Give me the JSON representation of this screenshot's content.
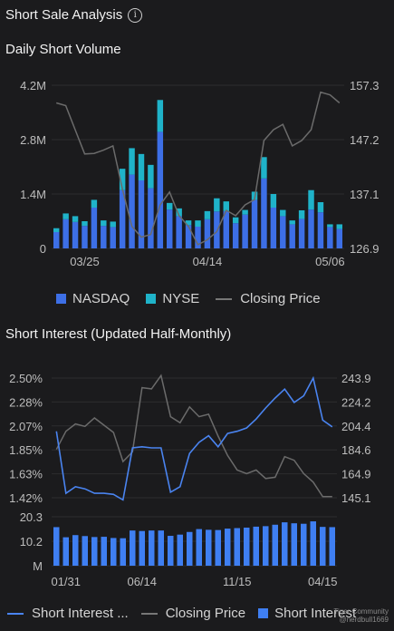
{
  "header": {
    "title": "Short Sale Analysis",
    "info_icon": "info-icon"
  },
  "daily": {
    "section_title": "Daily Short Volume",
    "legend": {
      "nasdaq": "NASDAQ",
      "nyse": "NYSE",
      "price": "Closing Price"
    },
    "colors": {
      "nasdaq": "#3d6fe6",
      "nyse": "#1fb3c9",
      "price": "#6b6b6b"
    }
  },
  "interest": {
    "section_title": "Short Interest (Updated Half-Monthly)",
    "legend": {
      "line": "Short Interest ...",
      "price": "Closing Price",
      "bars": "Short Interest"
    },
    "colors": {
      "line": "#4a84f0",
      "price": "#6b6b6b",
      "bars": "#3f7ff2"
    }
  },
  "watermark": {
    "line1": "Tiger Community",
    "line2": "@nerdbull1669"
  },
  "chart_data": [
    {
      "type": "bar",
      "stacked": true,
      "x_ticks": [
        "03/25",
        "04/14",
        "05/06"
      ],
      "x_tick_index": [
        3,
        16,
        29
      ],
      "y_ticks": [
        "0",
        "1.4M",
        "2.8M",
        "4.2M"
      ],
      "ylim": [
        0,
        4200000
      ],
      "y2_ticks": [
        "126.9",
        "137.1",
        "147.2",
        "157.3"
      ],
      "y2lim": [
        126.9,
        157.3
      ],
      "series": [
        {
          "name": "NASDAQ",
          "values": [
            0.42,
            0.75,
            0.68,
            0.58,
            1.05,
            0.58,
            0.55,
            1.5,
            1.9,
            1.75,
            1.55,
            3.0,
            1.0,
            0.83,
            0.6,
            0.56,
            0.75,
            0.95,
            0.96,
            0.65,
            0.87,
            1.25,
            1.8,
            1.05,
            0.83,
            0.62,
            0.76,
            1.0,
            0.93,
            0.55,
            0.5
          ]
        },
        {
          "name": "NYSE",
          "values": [
            0.1,
            0.15,
            0.15,
            0.12,
            0.2,
            0.14,
            0.14,
            0.55,
            0.68,
            0.68,
            0.6,
            0.82,
            0.17,
            0.2,
            0.12,
            0.16,
            0.21,
            0.34,
            0.25,
            0.15,
            0.12,
            0.21,
            0.55,
            0.35,
            0.16,
            0.1,
            0.22,
            0.5,
            0.26,
            0.07,
            0.12
          ]
        },
        {
          "name": "Closing Price",
          "values": [
            154.0,
            153.5,
            149.0,
            144.5,
            144.6,
            145.2,
            146.0,
            138.0,
            131.0,
            129.0,
            129.5,
            135.0,
            137.4,
            133.0,
            131.0,
            127.6,
            128.5,
            130.0,
            134.0,
            133.0,
            135.0,
            136.0,
            147.0,
            149.0,
            150.0,
            146.0,
            147.0,
            149.0,
            156.0,
            155.5,
            154.0
          ]
        }
      ]
    },
    {
      "type": "line",
      "x_ticks": [
        "01/31",
        "06/14",
        "11/15",
        "04/15"
      ],
      "x_tick_index": [
        1,
        9,
        19,
        28
      ],
      "y_ticks": [
        "1.42%",
        "1.63%",
        "1.85%",
        "2.07%",
        "2.28%",
        "2.50%"
      ],
      "ylim": [
        1.42,
        2.5
      ],
      "y2_ticks": [
        "145.1",
        "164.9",
        "184.6",
        "204.4",
        "224.2",
        "243.9"
      ],
      "y2lim": [
        145.1,
        243.9
      ],
      "bar_ticks": [
        "M",
        "10.2",
        "20.3"
      ],
      "bar_ylim": [
        0,
        20.3
      ],
      "series": [
        {
          "name": "Short Interest ...",
          "values": [
            2.02,
            1.46,
            1.52,
            1.5,
            1.46,
            1.46,
            1.45,
            1.4,
            1.87,
            1.88,
            1.87,
            1.87,
            1.47,
            1.52,
            1.82,
            1.92,
            1.98,
            1.88,
            2.0,
            2.02,
            2.05,
            2.13,
            2.23,
            2.32,
            2.4,
            2.28,
            2.34,
            2.5,
            2.12,
            2.06
          ]
        },
        {
          "name": "Closing Price",
          "values": [
            185.0,
            200.0,
            206.0,
            204.0,
            211.0,
            205.0,
            199.0,
            175.0,
            183.0,
            236.0,
            235.0,
            246.0,
            212.0,
            207.0,
            220.0,
            212.0,
            214.0,
            196.0,
            180.0,
            168.0,
            165.0,
            168.0,
            161.0,
            162.0,
            179.0,
            176.0,
            165.0,
            158.0,
            146.0,
            146.0
          ]
        },
        {
          "name": "Short Interest",
          "values": [
            16.0,
            11.8,
            12.7,
            12.3,
            11.9,
            12.0,
            11.5,
            11.4,
            14.6,
            14.4,
            14.6,
            14.6,
            12.4,
            12.9,
            14.0,
            15.2,
            14.9,
            14.8,
            15.4,
            15.6,
            15.8,
            16.2,
            16.4,
            17.0,
            18.0,
            17.6,
            17.4,
            18.4,
            16.1,
            16.0
          ]
        }
      ]
    }
  ]
}
